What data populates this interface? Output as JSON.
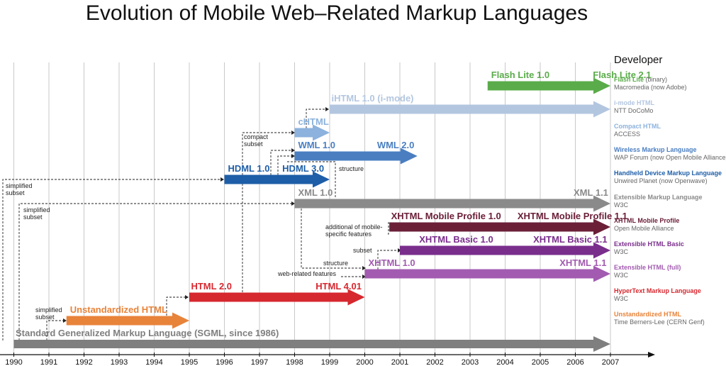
{
  "title": "Evolution of Mobile Web–Related Markup Languages",
  "developer_heading": "Developer",
  "years": [
    "1990",
    "1991",
    "1992",
    "1993",
    "1994",
    "1995",
    "1996",
    "1997",
    "1998",
    "1999",
    "2000",
    "2001",
    "2002",
    "2003",
    "2004",
    "2005",
    "2006",
    "2007"
  ],
  "languages": [
    {
      "id": "flash-lite",
      "start": 2003.5,
      "end": 2007,
      "color": "#5aac4a",
      "labels": [
        {
          "text": "Flash Lite 1.0",
          "year": 2003.6
        },
        {
          "text": "Flash Lite 2.1",
          "year": 2006.5
        }
      ],
      "developer": {
        "name": "Flash Lite",
        "suffix": " (binary)",
        "org": "Macromedia (now Adobe)"
      }
    },
    {
      "id": "ihtml",
      "start": 1999,
      "end": 2007,
      "color": "#b3c6e0",
      "labels": [
        {
          "text": "iHTML 1.0 (i-mode)",
          "year": 1999.05
        }
      ],
      "developer": {
        "name": "i-mode HTML",
        "suffix": "",
        "org": "NTT DoCoMo"
      }
    },
    {
      "id": "chtml",
      "start": 1998,
      "end": 1999,
      "color": "#8cb2dd",
      "labels": [
        {
          "text": "cHTML",
          "year": 1998.1
        }
      ],
      "developer": {
        "name": "Compact HTML",
        "suffix": "",
        "org": "ACCESS"
      }
    },
    {
      "id": "wml",
      "start": 1998,
      "end": 2001.5,
      "color": "#4a7ec1",
      "labels": [
        {
          "text": "WML 1.0",
          "year": 1998.1
        },
        {
          "text": "WML 2.0",
          "year": 2000.35
        }
      ],
      "developer": {
        "name": "Wireless Markup Language",
        "suffix": "",
        "org": "WAP Forum (now Open Mobile Alliance)"
      }
    },
    {
      "id": "hdml",
      "start": 1996,
      "end": 1999,
      "color": "#1e5ea8",
      "labels": [
        {
          "text": "HDML 1.0",
          "year": 1996.1
        },
        {
          "text": "HDML 3.0",
          "year": 1997.65
        }
      ],
      "developer": {
        "name": "Handheld Device Markup Language",
        "suffix": "",
        "org": "Unwired Planet (now Openwave)"
      }
    },
    {
      "id": "xml",
      "start": 1998,
      "end": 2007,
      "color": "#8a8a8a",
      "labels": [
        {
          "text": "XML 1.0",
          "year": 1998.1
        },
        {
          "text": "XML 1.1",
          "year": 2005.95
        }
      ],
      "developer": {
        "name": "Extensible Markup Language",
        "suffix": "",
        "org": "W3C"
      }
    },
    {
      "id": "xhtml-mp",
      "start": 2000.7,
      "end": 2007,
      "color": "#6b2038",
      "labels": [
        {
          "text": "XHTML Mobile Profile 1.0",
          "year": 2000.75
        },
        {
          "text": "XHTML Mobile Profile 1.1",
          "year": 2004.35
        }
      ],
      "developer": {
        "name": "XHTML Mobile Profile",
        "suffix": "",
        "org": "Open Mobile Alliance"
      }
    },
    {
      "id": "xhtml-basic",
      "start": 2001,
      "end": 2007,
      "color": "#7a2e8c",
      "labels": [
        {
          "text": "XHTML Basic 1.0",
          "year": 2001.55
        },
        {
          "text": "XHTML Basic 1.1",
          "year": 2004.8
        }
      ],
      "developer": {
        "name": "Extensible HTML Basic",
        "suffix": "",
        "org": "W3C"
      }
    },
    {
      "id": "xhtml",
      "start": 2000,
      "end": 2007,
      "color": "#a25bb0",
      "labels": [
        {
          "text": "XHTML 1.0",
          "year": 2000.1
        },
        {
          "text": "XHTML 1.1",
          "year": 2005.55
        }
      ],
      "developer": {
        "name": "Extensible HTML (full)",
        "suffix": "",
        "org": "W3C"
      }
    },
    {
      "id": "html",
      "start": 1995,
      "end": 2000,
      "color": "#d6282f",
      "labels": [
        {
          "text": "HTML 2.0",
          "year": 1995.05
        },
        {
          "text": "HTML 4.01",
          "year": 1998.6
        }
      ],
      "developer": {
        "name": "HyperText Markup Language",
        "suffix": "",
        "org": "W3C"
      }
    },
    {
      "id": "unstd-html",
      "start": 1991.5,
      "end": 1995,
      "color": "#e8833a",
      "labels": [
        {
          "text": "Unstandardized HTML",
          "year": 1991.6
        }
      ],
      "developer": {
        "name": "Unstandardized HTML",
        "suffix": "",
        "org": "Time Berners-Lee (CERN Genf)"
      }
    },
    {
      "id": "sgml",
      "start": 1990,
      "end": 2007,
      "color": "#7f7f7f",
      "labels": [
        {
          "text": "Standard Generalized Markup Language (SGML, since 1986)",
          "year": 1990.05
        }
      ],
      "developer": null
    }
  ],
  "annotations": [
    {
      "id": "compact-subset",
      "lines": [
        "compact",
        "subset"
      ]
    },
    {
      "id": "simplified-subset-hdml",
      "lines": [
        "simplified",
        "subset"
      ]
    },
    {
      "id": "simplified-subset-xml",
      "lines": [
        "simplified",
        "subset"
      ]
    },
    {
      "id": "structure-hdml",
      "lines": [
        "structure"
      ]
    },
    {
      "id": "additional-mobile",
      "lines": [
        "additional of mobile-",
        "specific features"
      ]
    },
    {
      "id": "subset-basic",
      "lines": [
        "subset"
      ]
    },
    {
      "id": "structure-xhtml",
      "lines": [
        "structure"
      ]
    },
    {
      "id": "web-related",
      "lines": [
        "web-related features"
      ]
    },
    {
      "id": "simplified-subset-unstd",
      "lines": [
        "simplified",
        "subset"
      ]
    }
  ]
}
